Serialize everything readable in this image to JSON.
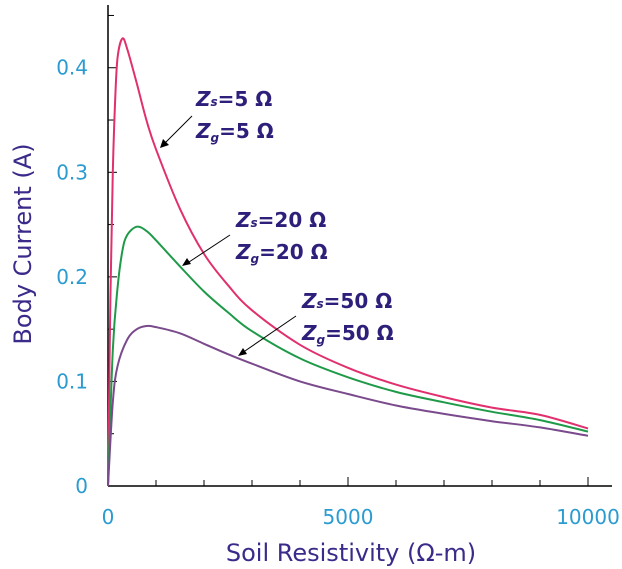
{
  "chart_data": {
    "type": "line",
    "xlabel": "Soil Resistivity (Ω-m)",
    "ylabel": "Body Current (A)",
    "xlim": [
      0,
      10500
    ],
    "ylim": [
      0,
      0.46
    ],
    "x_ticks": [
      0,
      5000,
      10000
    ],
    "x_tick_labels": [
      "0",
      "5000",
      "10000"
    ],
    "y_ticks": [
      0,
      0.1,
      0.2,
      0.3,
      0.4
    ],
    "y_tick_labels": [
      "0",
      "0.1",
      "0.2",
      "0.3",
      "0.4"
    ],
    "grid": false,
    "series": [
      {
        "color": "#e0306e",
        "points": [
          [
            0,
            0
          ],
          [
            50,
            0.18
          ],
          [
            100,
            0.3
          ],
          [
            150,
            0.37
          ],
          [
            200,
            0.41
          ],
          [
            300,
            0.428
          ],
          [
            400,
            0.418
          ],
          [
            600,
            0.385
          ],
          [
            800,
            0.35
          ],
          [
            1000,
            0.322
          ],
          [
            1500,
            0.265
          ],
          [
            2000,
            0.222
          ],
          [
            2500,
            0.192
          ],
          [
            3000,
            0.168
          ],
          [
            4000,
            0.135
          ],
          [
            5000,
            0.113
          ],
          [
            6000,
            0.097
          ],
          [
            7000,
            0.085
          ],
          [
            8000,
            0.075
          ],
          [
            9000,
            0.068
          ],
          [
            10000,
            0.055
          ]
        ],
        "annotation": {
          "z": "Z",
          "s": "s",
          "g": "g",
          "zs_value": "=5 Ω",
          "zg_value": "=5 Ω"
        }
      },
      {
        "color": "#1e9a48",
        "points": [
          [
            0,
            0
          ],
          [
            100,
            0.13
          ],
          [
            200,
            0.19
          ],
          [
            300,
            0.225
          ],
          [
            400,
            0.24
          ],
          [
            600,
            0.248
          ],
          [
            800,
            0.244
          ],
          [
            1000,
            0.235
          ],
          [
            1500,
            0.21
          ],
          [
            2000,
            0.186
          ],
          [
            2500,
            0.166
          ],
          [
            3000,
            0.148
          ],
          [
            4000,
            0.122
          ],
          [
            5000,
            0.104
          ],
          [
            6000,
            0.09
          ],
          [
            7000,
            0.08
          ],
          [
            8000,
            0.071
          ],
          [
            9000,
            0.063
          ],
          [
            10000,
            0.052
          ]
        ],
        "annotation": {
          "z": "Z",
          "s": "s",
          "g": "g",
          "zs_value": "=20 Ω",
          "zg_value": "=20 Ω"
        }
      },
      {
        "color": "#7a4a8c",
        "points": [
          [
            0,
            0
          ],
          [
            100,
            0.08
          ],
          [
            200,
            0.115
          ],
          [
            400,
            0.14
          ],
          [
            600,
            0.15
          ],
          [
            800,
            0.153
          ],
          [
            1000,
            0.152
          ],
          [
            1500,
            0.146
          ],
          [
            2000,
            0.136
          ],
          [
            2500,
            0.126
          ],
          [
            3000,
            0.117
          ],
          [
            4000,
            0.1
          ],
          [
            5000,
            0.088
          ],
          [
            6000,
            0.077
          ],
          [
            7000,
            0.069
          ],
          [
            8000,
            0.062
          ],
          [
            9000,
            0.056
          ],
          [
            10000,
            0.048
          ]
        ],
        "annotation": {
          "z": "Z",
          "s": "s",
          "g": "g",
          "zs_value": "=50 Ω",
          "zg_value": "=50 Ω"
        }
      }
    ]
  }
}
